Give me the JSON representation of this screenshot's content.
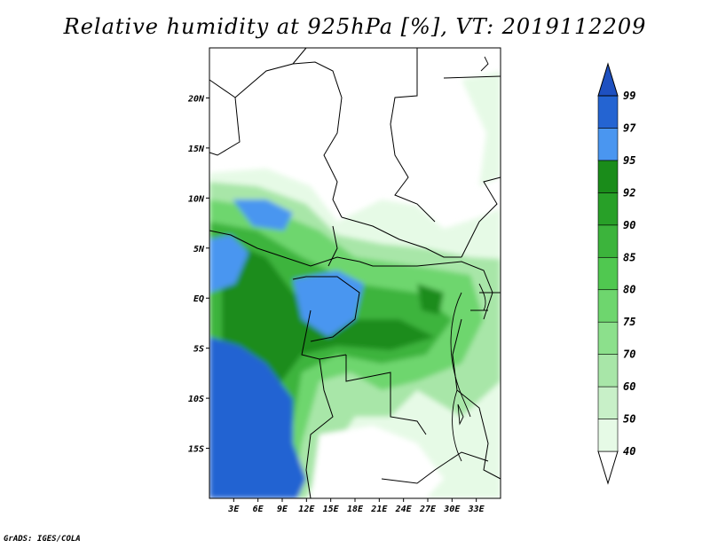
{
  "title": "Relative humidity at 925hPa [%], VT: 2019112209",
  "footer": "GrADS: IGES/COLA",
  "chart_data": {
    "type": "heatmap",
    "title": "Relative humidity at 925hPa [%], VT: 2019112209",
    "variable": "Relative humidity at 925hPa",
    "unit": "%",
    "valid_time": "2019112209",
    "lon_range": [
      0,
      36
    ],
    "lat_range": [
      -20,
      25
    ],
    "x_ticks": [
      "3E",
      "6E",
      "9E",
      "12E",
      "15E",
      "18E",
      "21E",
      "24E",
      "27E",
      "30E",
      "33E"
    ],
    "x_tick_values": [
      3,
      6,
      9,
      12,
      15,
      18,
      21,
      24,
      27,
      30,
      33
    ],
    "y_ticks": [
      "20N",
      "15N",
      "10N",
      "5N",
      "EQ",
      "5S",
      "10S",
      "15S"
    ],
    "y_tick_values": [
      20,
      15,
      10,
      5,
      0,
      -5,
      -10,
      -15
    ],
    "colorbar": {
      "levels": [
        "40",
        "50",
        "60",
        "70",
        "75",
        "80",
        "85",
        "90",
        "92",
        "95",
        "97",
        "99"
      ],
      "colors": [
        "#ffffff",
        "#e6fae6",
        "#c8f0c8",
        "#a8e6a8",
        "#8ce08c",
        "#6ed66e",
        "#50c850",
        "#3cb43c",
        "#28a028",
        "#1a8c1a",
        "#4a96f0",
        "#2464d2",
        "#1e50c0"
      ],
      "extend": "both"
    }
  }
}
